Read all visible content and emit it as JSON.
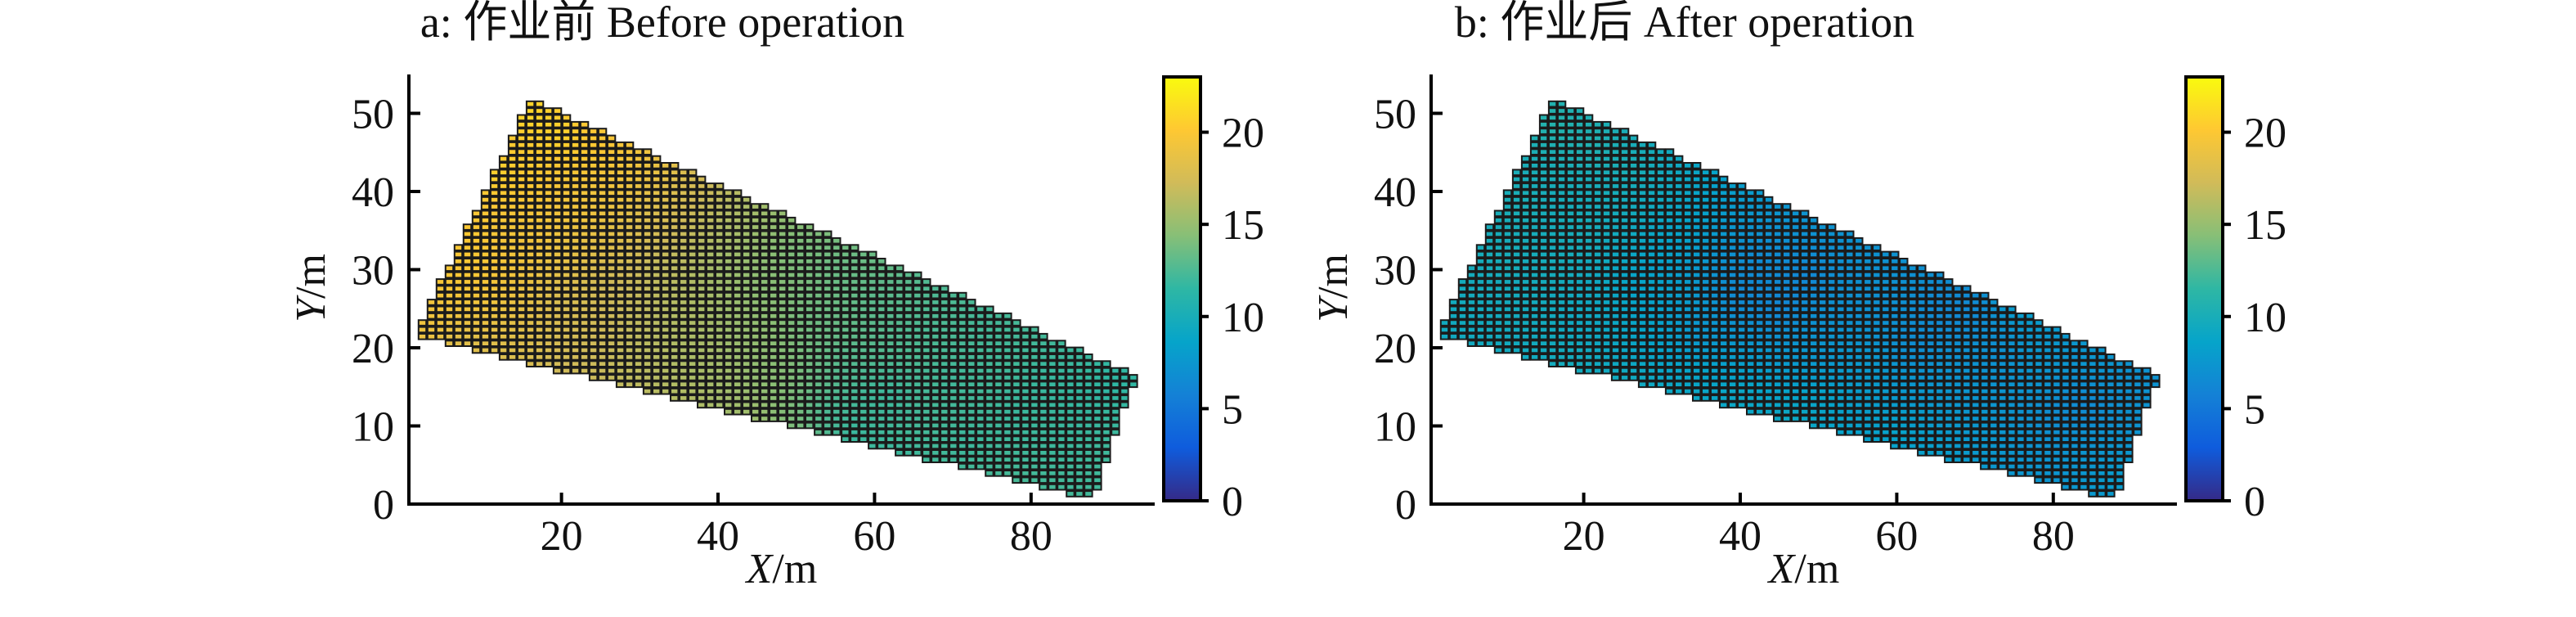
{
  "figure": {
    "background": "#ffffff",
    "axis_color": "#000000",
    "text_color": "#111111",
    "cell_stroke": "#1b1b1b"
  },
  "colormap": {
    "name": "parula",
    "stops": [
      "#352a87",
      "#0f5cdd",
      "#1481d6",
      "#06a4ca",
      "#2eb7a4",
      "#87bf77",
      "#d1bb59",
      "#fec832",
      "#f9fb0e"
    ]
  },
  "chart_data": [
    {
      "id": "before",
      "type": "heatmap",
      "title": "a: 作业前 Before operation",
      "xlabel": "X/m",
      "ylabel": "Y/m",
      "xlabel_var": "X",
      "xlabel_unit": "/m",
      "ylabel_var": "Y",
      "ylabel_unit": "/m",
      "xlim": [
        0.5,
        96
      ],
      "ylim": [
        0,
        55
      ],
      "xticks": [
        20,
        40,
        60,
        80
      ],
      "yticks": [
        0,
        10,
        20,
        30,
        40,
        50
      ],
      "grid": false,
      "colorbar": {
        "range": [
          0,
          23
        ],
        "ticks": [
          0,
          5,
          10,
          15,
          20
        ],
        "position": "right"
      },
      "field_polygon": [
        [
          16,
          52
        ],
        [
          93.5,
          16.5
        ],
        [
          88,
          0.5
        ],
        [
          1,
          21.5
        ]
      ],
      "cell_size_m": [
        1.15,
        0.875
      ],
      "value_description": "measured value per grid cell, approx. 11-22 before operation; bright yellow (~21-22) at upper-left, orange patch (~19-20) around x=8-32 y=25-43, olive-gold (~17) along lower-left edge, green (~13-15) mid-field, teal (~11-12) lower-middle and right side",
      "control_points": [
        [
          16,
          50,
          21.8
        ],
        [
          20,
          47,
          21.5
        ],
        [
          24,
          45,
          21.0
        ],
        [
          28,
          45,
          20.3
        ],
        [
          12,
          42,
          21.3
        ],
        [
          8,
          34,
          21.0
        ],
        [
          6,
          28,
          20.6
        ],
        [
          10,
          30,
          20.6
        ],
        [
          16,
          42,
          20.8
        ],
        [
          4,
          23,
          19.8
        ],
        [
          11,
          26,
          19.6
        ],
        [
          14,
          30,
          19.8
        ],
        [
          18,
          35,
          19.9
        ],
        [
          23,
          37,
          19.9
        ],
        [
          27,
          40,
          19.6
        ],
        [
          30,
          43,
          19.4
        ],
        [
          21,
          32,
          18.9
        ],
        [
          26,
          34,
          18.4
        ],
        [
          31,
          37,
          17.8
        ],
        [
          13,
          22,
          18.6
        ],
        [
          6,
          20,
          17.6
        ],
        [
          12,
          18,
          17.3
        ],
        [
          20,
          16.5,
          17.0
        ],
        [
          28,
          14,
          16.8
        ],
        [
          36,
          12.5,
          16.6
        ],
        [
          44,
          11,
          16.2
        ],
        [
          50,
          10,
          14.5
        ],
        [
          20,
          26,
          17.2
        ],
        [
          26,
          28,
          16.6
        ],
        [
          32,
          30,
          16.2
        ],
        [
          34,
          24,
          16.0
        ],
        [
          40,
          30,
          15.0
        ],
        [
          38,
          20,
          15.8
        ],
        [
          44,
          22,
          15.0
        ],
        [
          46,
          28,
          14.2
        ],
        [
          40,
          16,
          15.6
        ],
        [
          48,
          16,
          14.6
        ],
        [
          52,
          24,
          13.2
        ],
        [
          56,
          18,
          12.4
        ],
        [
          54,
          12,
          11.4
        ],
        [
          57,
          9,
          10.8
        ],
        [
          61,
          5,
          11.0
        ],
        [
          59,
          14,
          11.6
        ],
        [
          62,
          14,
          11.4
        ],
        [
          60,
          26,
          12.6
        ],
        [
          66,
          22,
          12.2
        ],
        [
          64,
          6,
          11.8
        ],
        [
          70,
          16,
          11.8
        ],
        [
          72,
          8,
          11.6
        ],
        [
          76,
          20,
          12.0
        ],
        [
          78,
          12,
          11.6
        ],
        [
          82,
          16,
          11.6
        ],
        [
          84,
          8,
          11.8
        ],
        [
          88,
          3,
          12.0
        ],
        [
          90,
          16,
          11.2
        ],
        [
          92,
          15,
          11.4
        ],
        [
          68,
          28,
          12.2
        ],
        [
          74,
          24,
          11.9
        ],
        [
          86,
          13,
          11.4
        ],
        [
          50,
          32,
          13.6
        ],
        [
          55,
          30,
          13.0
        ]
      ]
    },
    {
      "id": "after",
      "type": "heatmap",
      "title": "b: 作业后 After operation",
      "xlabel": "X/m",
      "ylabel": "Y/m",
      "xlabel_var": "X",
      "xlabel_unit": "/m",
      "ylabel_var": "Y",
      "ylabel_unit": "/m",
      "xlim": [
        0.5,
        96
      ],
      "ylim": [
        0,
        55
      ],
      "xticks": [
        20,
        40,
        60,
        80
      ],
      "yticks": [
        0,
        10,
        20,
        30,
        40,
        50
      ],
      "grid": false,
      "colorbar": {
        "range": [
          0,
          23
        ],
        "ticks": [
          0,
          5,
          10,
          15,
          20
        ],
        "position": "right"
      },
      "field_polygon": [
        [
          16,
          52
        ],
        [
          93.5,
          16.5
        ],
        [
          88,
          0.5
        ],
        [
          1,
          21.5
        ]
      ],
      "cell_size_m": [
        1.15,
        0.875
      ],
      "value_description": "measured value per grid cell, approx. 5-11.5 after operation; teal-green (~10-11.5) at upper-left and along lower band, blue patches (~5-7) around x=35-50 y=22-31 and right side x=62-90",
      "control_points": [
        [
          16,
          49,
          11.3
        ],
        [
          21,
          46,
          11.0
        ],
        [
          26,
          43,
          10.6
        ],
        [
          12,
          38,
          10.4
        ],
        [
          7,
          28,
          9.7
        ],
        [
          4,
          23,
          9.4
        ],
        [
          12,
          24,
          9.7
        ],
        [
          16,
          30,
          10.0
        ],
        [
          20,
          34,
          10.3
        ],
        [
          25,
          37,
          10.0
        ],
        [
          30,
          40,
          9.6
        ],
        [
          33,
          34,
          8.8
        ],
        [
          28,
          28,
          8.4
        ],
        [
          22,
          24,
          9.2
        ],
        [
          18,
          18,
          10.0
        ],
        [
          25,
          14,
          10.2
        ],
        [
          32,
          11,
          10.2
        ],
        [
          10,
          32,
          10.1
        ],
        [
          35,
          22,
          6.9
        ],
        [
          40,
          27,
          5.2
        ],
        [
          45,
          25,
          5.1
        ],
        [
          48,
          29,
          5.5
        ],
        [
          42,
          31,
          6.0
        ],
        [
          37,
          31,
          6.9
        ],
        [
          40,
          14,
          9.6
        ],
        [
          46,
          10,
          9.8
        ],
        [
          50,
          13,
          9.4
        ],
        [
          34,
          17,
          9.0
        ],
        [
          50,
          5,
          9.3
        ],
        [
          50,
          20,
          7.4
        ],
        [
          55,
          25,
          6.6
        ],
        [
          56,
          17,
          8.0
        ],
        [
          60,
          9,
          9.0
        ],
        [
          62,
          21,
          6.2
        ],
        [
          66,
          25,
          5.6
        ],
        [
          70,
          25,
          5.4
        ],
        [
          68,
          15,
          7.4
        ],
        [
          65,
          5,
          8.6
        ],
        [
          72,
          10,
          7.6
        ],
        [
          58,
          30,
          7.0
        ],
        [
          73,
          20,
          6.6
        ],
        [
          75,
          28,
          9.7
        ],
        [
          78,
          26,
          9.3
        ],
        [
          78,
          18,
          7.8
        ],
        [
          80,
          11,
          6.2
        ],
        [
          84,
          13,
          5.8
        ],
        [
          82,
          7,
          7.4
        ],
        [
          88,
          3,
          8.3
        ],
        [
          90,
          15,
          6.8
        ],
        [
          93,
          16,
          7.2
        ],
        [
          86,
          19,
          7.8
        ]
      ]
    }
  ]
}
